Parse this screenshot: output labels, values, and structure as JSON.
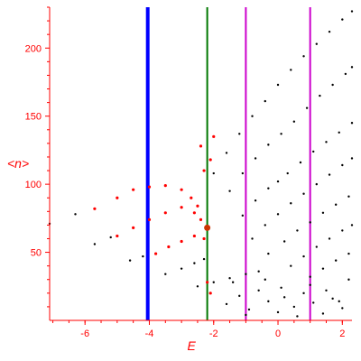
{
  "chart_data": {
    "type": "scatter",
    "title": "",
    "xlabel": "E",
    "ylabel": "<n>",
    "xlim": [
      -7.1,
      2.3
    ],
    "ylim": [
      0,
      230
    ],
    "grid": false,
    "xticks": [
      -6,
      -4,
      -2,
      0,
      2
    ],
    "yticks": [
      50,
      100,
      150,
      200
    ],
    "colors": {
      "axis": "#ff0000",
      "black_points": "#000000",
      "red_points": "#ff0000",
      "blue_line": "#0000ff",
      "green_line": "#007700",
      "magenta_line": "#cc00cc",
      "marker": "#cc3300"
    },
    "vertical_lines": [
      {
        "x": -4.05,
        "color": "#0000ff",
        "width": 4
      },
      {
        "x": -2.2,
        "color": "#007700",
        "width": 2
      },
      {
        "x": -1.0,
        "color": "#cc00cc",
        "width": 2
      },
      {
        "x": 1.0,
        "color": "#cc00cc",
        "width": 2
      }
    ],
    "marker": {
      "x": -2.2,
      "y": 68
    },
    "series": [
      {
        "color": "#000000",
        "x": [
          -7.1,
          -6.3,
          -5.7
        ],
        "y": [
          71,
          78,
          82
        ]
      },
      {
        "color": "#ff0000",
        "x": [
          -5.7,
          -5.0,
          -4.5,
          -4.0,
          -3.5,
          -3.0,
          -2.7,
          -2.5
        ],
        "y": [
          82,
          90,
          96,
          98,
          99,
          96,
          90,
          84
        ]
      },
      {
        "color": "#000000",
        "x": [
          -5.7,
          -5.2,
          -5.0
        ],
        "y": [
          56,
          61,
          62
        ]
      },
      {
        "color": "#ff0000",
        "x": [
          -5.0,
          -4.5,
          -4.0,
          -3.5,
          -3.0,
          -2.6,
          -2.4
        ],
        "y": [
          62,
          68,
          74,
          79,
          83,
          79,
          74
        ]
      },
      {
        "color": "#000000",
        "x": [
          -4.6,
          -4.2,
          -3.8
        ],
        "y": [
          44,
          47,
          49
        ]
      },
      {
        "color": "#ff0000",
        "x": [
          -3.8,
          -3.4,
          -3.0,
          -2.6,
          -2.3
        ],
        "y": [
          49,
          54,
          58,
          62,
          60
        ]
      },
      {
        "color": "#000000",
        "x": [
          -3.5,
          -3.0,
          -2.6,
          -2.3
        ],
        "y": [
          34,
          38,
          42,
          45
        ]
      },
      {
        "color": "#000000",
        "x": [
          -2.5,
          -2.0,
          -1.5,
          -1.0,
          -0.6
        ],
        "y": [
          25,
          28,
          31,
          34,
          36
        ]
      },
      {
        "color": "#000000",
        "x": [
          -2.0,
          -1.6,
          -1.2,
          -0.8,
          -0.4,
          0.0,
          0.4,
          0.8,
          1.2,
          1.6,
          2.0,
          2.3
        ],
        "y": [
          108,
          123,
          137,
          150,
          161,
          173,
          184,
          194,
          203,
          212,
          221,
          227
        ]
      },
      {
        "color": "#000000",
        "x": [
          -1.5,
          -1.1,
          -0.7,
          -0.3,
          0.1,
          0.5,
          0.9,
          1.3,
          1.7,
          2.1,
          2.3
        ],
        "y": [
          95,
          108,
          119,
          129,
          137,
          146,
          156,
          165,
          173,
          181,
          186
        ]
      },
      {
        "color": "#000000",
        "x": [
          -1.1,
          -0.7,
          -0.3,
          0.0,
          0.3,
          0.7,
          1.1,
          1.5,
          1.9,
          2.3
        ],
        "y": [
          77,
          88,
          97,
          102,
          108,
          116,
          124,
          131,
          138,
          145
        ]
      },
      {
        "color": "#000000",
        "x": [
          -0.8,
          -0.4,
          0.0,
          0.4,
          0.8,
          1.2,
          1.6,
          2.0,
          2.3
        ],
        "y": [
          60,
          70,
          78,
          86,
          93,
          100,
          107,
          114,
          119
        ]
      },
      {
        "color": "#000000",
        "x": [
          -0.3,
          0.2,
          0.6,
          1.0,
          1.4,
          1.8,
          2.2
        ],
        "y": [
          49,
          58,
          66,
          72,
          79,
          85,
          91
        ]
      },
      {
        "color": "#000000",
        "x": [
          0.4,
          0.8,
          1.2,
          1.6,
          2.0,
          2.3
        ],
        "y": [
          40,
          47,
          54,
          60,
          66,
          70
        ]
      },
      {
        "color": "#000000",
        "x": [
          1.0,
          1.4,
          1.8,
          2.2
        ],
        "y": [
          32,
          38,
          44,
          49
        ]
      },
      {
        "color": "#000000",
        "x": [
          -1.6,
          -1.2,
          -0.9,
          -0.6,
          -0.3,
          0.0,
          0.2,
          0.5,
          0.8,
          1.1,
          1.4,
          1.7,
          2.0,
          -1.4,
          -1.0,
          -0.4,
          0.1,
          0.6,
          1.0,
          1.5,
          1.9,
          2.2
        ],
        "y": [
          12,
          18,
          8,
          22,
          14,
          6,
          17,
          10,
          20,
          13,
          5,
          16,
          9,
          28,
          4,
          30,
          24,
          3,
          26,
          22,
          14,
          30
        ]
      },
      {
        "color": "#ff0000",
        "x": [
          -2.3,
          -2.1,
          -2.4,
          -2.0,
          -2.2,
          -2.1
        ],
        "y": [
          110,
          118,
          128,
          135,
          28,
          20
        ]
      }
    ]
  }
}
